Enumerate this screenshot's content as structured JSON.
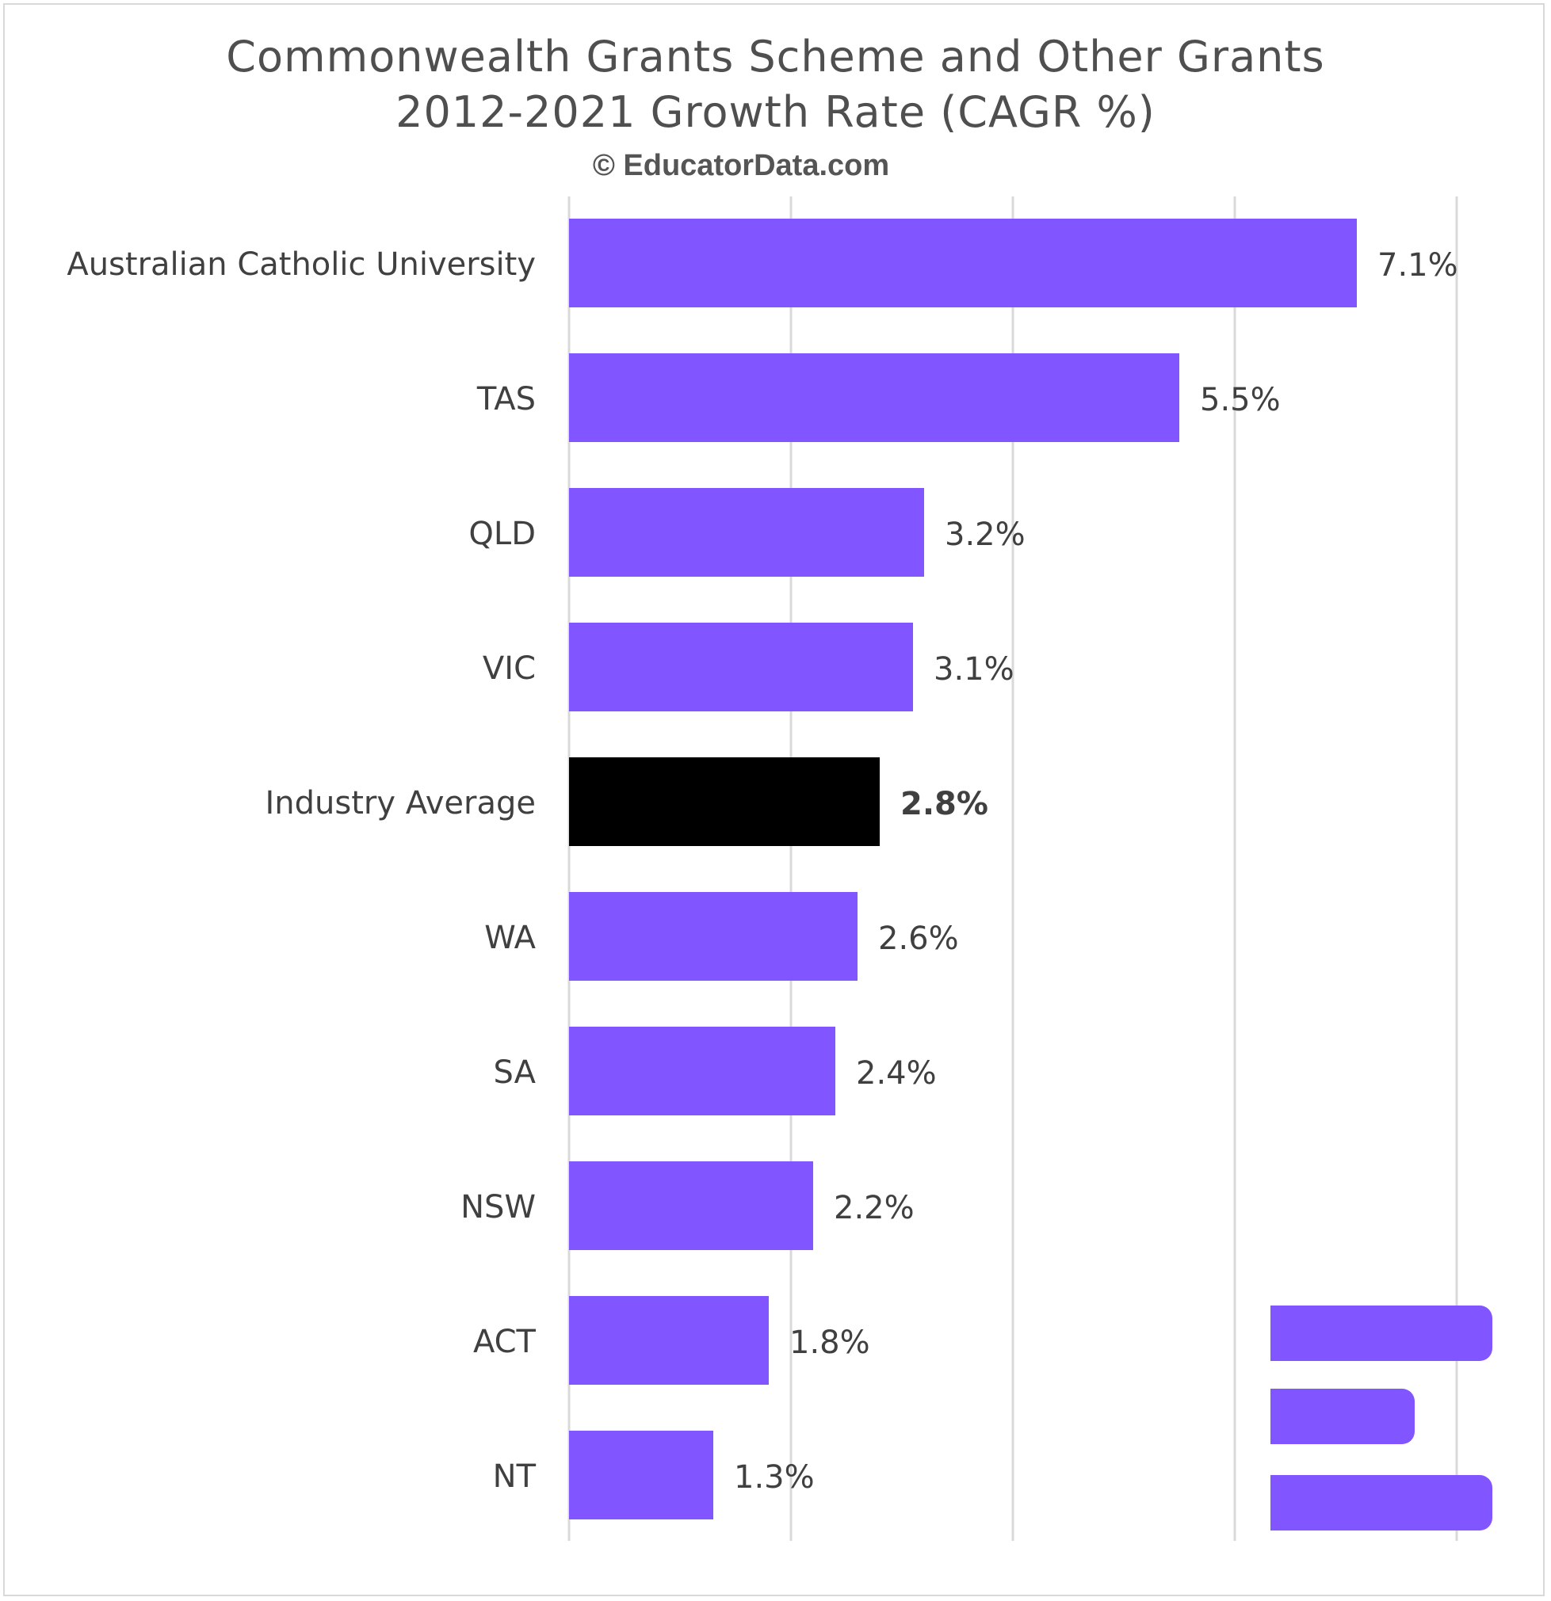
{
  "chart_data": {
    "type": "bar",
    "orientation": "horizontal",
    "title": "Commonwealth Grants Scheme and Other Grants",
    "subtitle": "2012-2021 Growth Rate (CAGR %)",
    "watermark": "© EducatorData.com",
    "categories": [
      "Australian Catholic University",
      "TAS",
      "QLD",
      "VIC",
      "Industry Average",
      "WA",
      "SA",
      "NSW",
      "ACT",
      "NT"
    ],
    "values": [
      7.1,
      5.5,
      3.2,
      3.1,
      2.8,
      2.6,
      2.4,
      2.2,
      1.8,
      1.3
    ],
    "value_labels": [
      "7.1%",
      "5.5%",
      "3.2%",
      "3.1%",
      "2.8%",
      "2.6%",
      "2.4%",
      "2.2%",
      "1.8%",
      "1.3%"
    ],
    "highlight_category": "Industry Average",
    "xlim": [
      0,
      8
    ],
    "gridlines_at": [
      0,
      2,
      4,
      6,
      8
    ],
    "grid": true,
    "xlabel": "",
    "ylabel": "",
    "colors": {
      "bar": "#8155ff",
      "highlight": "#000000",
      "grid": "#d9d9d9",
      "text": "#404040",
      "title": "#4f4f4f"
    }
  },
  "logo": {
    "name": "educator-data-logo",
    "color": "#8155ff"
  }
}
